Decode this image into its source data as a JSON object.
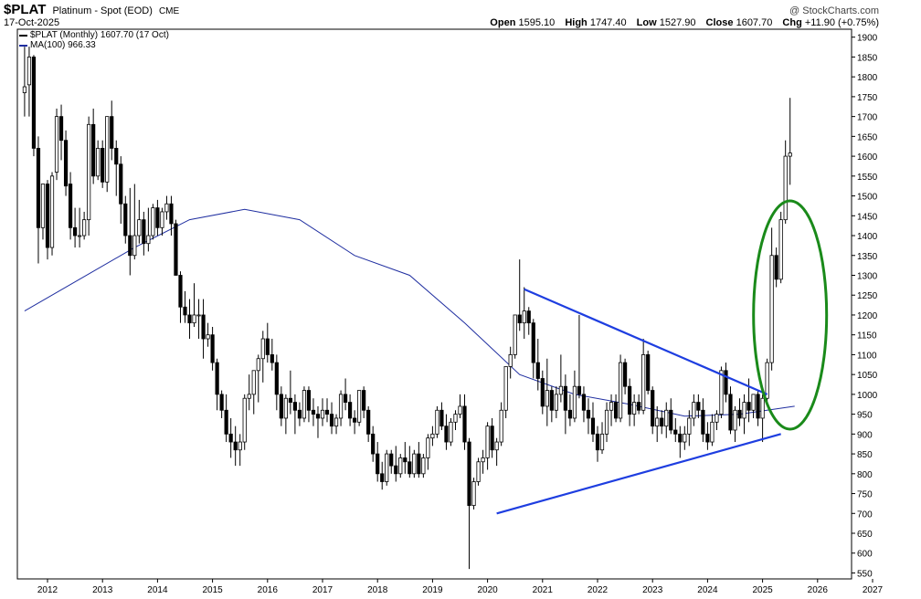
{
  "header": {
    "symbol": "$PLAT",
    "name": "Platinum - Spot (EOD)",
    "exchange": "CME",
    "date": "17-Oct-2025",
    "copyright": "@ StockCharts.com",
    "ohlc": {
      "open_label": "Open",
      "open": "1595.10",
      "high_label": "High",
      "high": "1747.40",
      "low_label": "Low",
      "low": "1527.90",
      "close_label": "Close",
      "close": "1607.70",
      "chg_label": "Chg",
      "chg": "+11.90 (+0.75%)"
    }
  },
  "legend": [
    {
      "label": "$PLAT (Monthly) 1607.70 (17 Oct)",
      "color": "#000000"
    },
    {
      "label": "MA(100) 966.33",
      "color": "#1f2ea0"
    }
  ],
  "chart_data": {
    "type": "candlestick",
    "y_ticks": [
      550,
      600,
      650,
      700,
      750,
      800,
      850,
      900,
      950,
      1000,
      1050,
      1100,
      1150,
      1200,
      1250,
      1300,
      1350,
      1400,
      1450,
      1500,
      1550,
      1600,
      1650,
      1700,
      1750,
      1800,
      1850,
      1900
    ],
    "ylim": [
      535,
      1920
    ],
    "x_ticks": [
      "2012",
      "2013",
      "2014",
      "2015",
      "2016",
      "2017",
      "2018",
      "2019",
      "2020",
      "2021",
      "2022",
      "2023",
      "2024",
      "2025",
      "2026",
      "2027"
    ],
    "x_start": "2011-08",
    "candles": [
      [
        1760,
        1876,
        1700,
        1775
      ],
      [
        1780,
        1876,
        1700,
        1850
      ],
      [
        1850,
        1855,
        1600,
        1620
      ],
      [
        1620,
        1650,
        1330,
        1420
      ],
      [
        1420,
        1530,
        1390,
        1530
      ],
      [
        1530,
        1540,
        1340,
        1370
      ],
      [
        1370,
        1560,
        1350,
        1550
      ],
      [
        1560,
        1720,
        1540,
        1700
      ],
      [
        1700,
        1730,
        1590,
        1640
      ],
      [
        1640,
        1665,
        1500,
        1525
      ],
      [
        1530,
        1560,
        1390,
        1420
      ],
      [
        1420,
        1470,
        1370,
        1400
      ],
      [
        1400,
        1470,
        1370,
        1400
      ],
      [
        1400,
        1460,
        1390,
        1440
      ],
      [
        1440,
        1700,
        1400,
        1680
      ],
      [
        1680,
        1720,
        1530,
        1550
      ],
      [
        1550,
        1640,
        1540,
        1620
      ],
      [
        1620,
        1640,
        1520,
        1535
      ],
      [
        1535,
        1700,
        1510,
        1700
      ],
      [
        1700,
        1740,
        1590,
        1620
      ],
      [
        1620,
        1640,
        1500,
        1580
      ],
      [
        1580,
        1600,
        1430,
        1480
      ],
      [
        1480,
        1500,
        1380,
        1400
      ],
      [
        1400,
        1520,
        1300,
        1350
      ],
      [
        1350,
        1530,
        1340,
        1400
      ],
      [
        1400,
        1490,
        1380,
        1440
      ],
      [
        1440,
        1460,
        1350,
        1380
      ],
      [
        1380,
        1470,
        1360,
        1400
      ],
      [
        1400,
        1480,
        1390,
        1470
      ],
      [
        1470,
        1490,
        1400,
        1420
      ],
      [
        1420,
        1470,
        1400,
        1460
      ],
      [
        1460,
        1500,
        1440,
        1480
      ],
      [
        1480,
        1500,
        1400,
        1430
      ],
      [
        1430,
        1440,
        1300,
        1300
      ],
      [
        1300,
        1310,
        1180,
        1220
      ],
      [
        1220,
        1260,
        1180,
        1200
      ],
      [
        1200,
        1240,
        1140,
        1180
      ],
      [
        1180,
        1280,
        1170,
        1200
      ],
      [
        1200,
        1240,
        1140,
        1200
      ],
      [
        1200,
        1240,
        1090,
        1140
      ],
      [
        1140,
        1180,
        1120,
        1150
      ],
      [
        1150,
        1170,
        1060,
        1080
      ],
      [
        1080,
        1090,
        960,
        1000
      ],
      [
        1000,
        1010,
        940,
        960
      ],
      [
        960,
        1000,
        880,
        900
      ],
      [
        900,
        940,
        840,
        880
      ],
      [
        880,
        920,
        820,
        860
      ],
      [
        860,
        900,
        820,
        880
      ],
      [
        880,
        1000,
        860,
        990
      ],
      [
        990,
        1050,
        960,
        1000
      ],
      [
        1000,
        1060,
        950,
        1060
      ],
      [
        1060,
        1100,
        980,
        1090
      ],
      [
        1090,
        1160,
        1030,
        1140
      ],
      [
        1140,
        1180,
        1080,
        1100
      ],
      [
        1100,
        1140,
        1060,
        1080
      ],
      [
        1080,
        1100,
        960,
        1000
      ],
      [
        1000,
        1020,
        920,
        940
      ],
      [
        940,
        1000,
        900,
        990
      ],
      [
        990,
        1060,
        950,
        980
      ],
      [
        980,
        1000,
        900,
        960
      ],
      [
        960,
        980,
        920,
        940
      ],
      [
        940,
        1020,
        930,
        1010
      ],
      [
        1010,
        1020,
        930,
        960
      ],
      [
        960,
        990,
        920,
        950
      ],
      [
        950,
        970,
        890,
        940
      ],
      [
        940,
        990,
        920,
        960
      ],
      [
        960,
        990,
        930,
        950
      ],
      [
        950,
        980,
        900,
        920
      ],
      [
        920,
        950,
        900,
        940
      ],
      [
        940,
        1010,
        920,
        1000
      ],
      [
        1000,
        1040,
        960,
        980
      ],
      [
        980,
        1000,
        920,
        940
      ],
      [
        940,
        960,
        900,
        930
      ],
      [
        930,
        1010,
        920,
        1010
      ],
      [
        1010,
        1020,
        940,
        960
      ],
      [
        960,
        970,
        880,
        900
      ],
      [
        900,
        920,
        830,
        850
      ],
      [
        850,
        880,
        780,
        800
      ],
      [
        800,
        830,
        760,
        780
      ],
      [
        780,
        860,
        770,
        850
      ],
      [
        850,
        860,
        800,
        820
      ],
      [
        820,
        870,
        780,
        800
      ],
      [
        800,
        850,
        790,
        840
      ],
      [
        840,
        880,
        800,
        830
      ],
      [
        830,
        870,
        790,
        800
      ],
      [
        800,
        860,
        790,
        850
      ],
      [
        850,
        880,
        790,
        800
      ],
      [
        800,
        850,
        790,
        840
      ],
      [
        840,
        900,
        810,
        890
      ],
      [
        890,
        920,
        870,
        900
      ],
      [
        900,
        970,
        890,
        960
      ],
      [
        960,
        980,
        910,
        920
      ],
      [
        920,
        950,
        860,
        880
      ],
      [
        880,
        940,
        870,
        930
      ],
      [
        930,
        960,
        910,
        950
      ],
      [
        950,
        1000,
        940,
        970
      ],
      [
        970,
        1000,
        860,
        880
      ],
      [
        880,
        890,
        560,
        720
      ],
      [
        720,
        790,
        710,
        780
      ],
      [
        780,
        840,
        770,
        830
      ],
      [
        830,
        860,
        800,
        840
      ],
      [
        840,
        930,
        810,
        920
      ],
      [
        920,
        940,
        840,
        860
      ],
      [
        860,
        890,
        820,
        880
      ],
      [
        880,
        980,
        870,
        960
      ],
      [
        960,
        1070,
        940,
        1070
      ],
      [
        1070,
        1120,
        1040,
        1100
      ],
      [
        1100,
        1200,
        1090,
        1200
      ],
      [
        1200,
        1340,
        1160,
        1180
      ],
      [
        1180,
        1270,
        1140,
        1210
      ],
      [
        1210,
        1220,
        1150,
        1180
      ],
      [
        1180,
        1190,
        1040,
        1080
      ],
      [
        1080,
        1140,
        1010,
        1040
      ],
      [
        1040,
        1060,
        950,
        970
      ],
      [
        970,
        1090,
        920,
        1010
      ],
      [
        1010,
        1020,
        930,
        960
      ],
      [
        960,
        1020,
        940,
        1000
      ],
      [
        1000,
        1100,
        980,
        1020
      ],
      [
        1020,
        1050,
        900,
        960
      ],
      [
        960,
        1000,
        920,
        940
      ],
      [
        940,
        1060,
        930,
        1020
      ],
      [
        1020,
        1200,
        990,
        1000
      ],
      [
        1000,
        1020,
        930,
        960
      ],
      [
        960,
        990,
        900,
        940
      ],
      [
        940,
        980,
        880,
        900
      ],
      [
        900,
        920,
        830,
        860
      ],
      [
        860,
        930,
        850,
        900
      ],
      [
        900,
        980,
        880,
        960
      ],
      [
        960,
        1000,
        920,
        980
      ],
      [
        980,
        1000,
        930,
        940
      ],
      [
        940,
        1100,
        930,
        1080
      ],
      [
        1080,
        1090,
        1000,
        1020
      ],
      [
        1020,
        1040,
        920,
        950
      ],
      [
        950,
        1000,
        920,
        980
      ],
      [
        980,
        1000,
        950,
        960
      ],
      [
        960,
        1140,
        950,
        1100
      ],
      [
        1100,
        1110,
        1000,
        1010
      ],
      [
        1010,
        1020,
        900,
        920
      ],
      [
        920,
        970,
        880,
        940
      ],
      [
        940,
        960,
        900,
        920
      ],
      [
        920,
        980,
        890,
        960
      ],
      [
        960,
        990,
        900,
        910
      ],
      [
        910,
        940,
        880,
        900
      ],
      [
        900,
        920,
        840,
        880
      ],
      [
        880,
        920,
        860,
        900
      ],
      [
        900,
        960,
        870,
        940
      ],
      [
        940,
        1000,
        920,
        980
      ],
      [
        980,
        1000,
        940,
        960
      ],
      [
        960,
        990,
        880,
        900
      ],
      [
        900,
        930,
        860,
        880
      ],
      [
        880,
        950,
        870,
        930
      ],
      [
        930,
        960,
        910,
        950
      ],
      [
        950,
        1070,
        940,
        1060
      ],
      [
        1060,
        1080,
        980,
        1000
      ],
      [
        1000,
        1020,
        900,
        910
      ],
      [
        910,
        970,
        880,
        960
      ],
      [
        960,
        990,
        920,
        940
      ],
      [
        940,
        1000,
        900,
        980
      ],
      [
        980,
        1040,
        930,
        960
      ],
      [
        960,
        1000,
        940,
        1000
      ],
      [
        1000,
        1010,
        920,
        940
      ],
      [
        940,
        1000,
        880,
        990
      ],
      [
        990,
        1090,
        970,
        1080
      ],
      [
        1080,
        1420,
        1060,
        1350
      ],
      [
        1350,
        1370,
        1270,
        1290
      ],
      [
        1290,
        1460,
        1280,
        1440
      ],
      [
        1440,
        1640,
        1430,
        1600
      ],
      [
        1600,
        1747,
        1528,
        1608
      ]
    ],
    "ma100": [
      [
        0,
        1210
      ],
      [
        12,
        1290
      ],
      [
        24,
        1370
      ],
      [
        36,
        1440
      ],
      [
        48,
        1466
      ],
      [
        60,
        1440
      ],
      [
        72,
        1350
      ],
      [
        84,
        1300
      ],
      [
        96,
        1180
      ],
      [
        108,
        1050
      ],
      [
        120,
        1000
      ],
      [
        132,
        975
      ],
      [
        144,
        945
      ],
      [
        156,
        950
      ],
      [
        168,
        970
      ]
    ],
    "annotations": [
      {
        "type": "trendline",
        "from": [
          "2020-03",
          700
        ],
        "to": [
          "2025-05",
          900
        ],
        "color": "#1e3ee0"
      },
      {
        "type": "trendline",
        "from": [
          "2020-09",
          1265
        ],
        "to": [
          "2025-02",
          1000
        ],
        "color": "#1e3ee0"
      },
      {
        "type": "ellipse",
        "center": [
          "2025-07",
          1200
        ],
        "color": "#1a8a1a"
      }
    ]
  }
}
